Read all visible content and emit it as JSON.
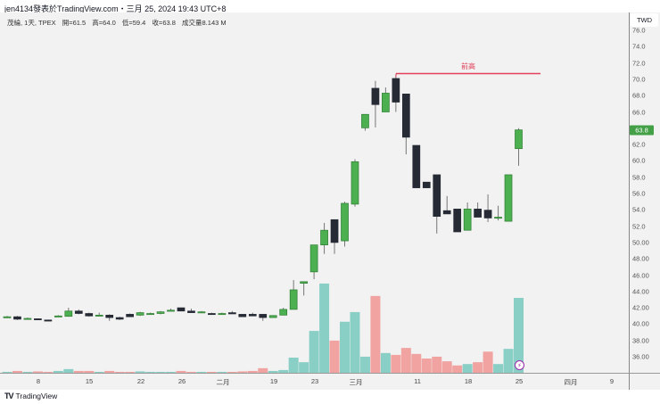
{
  "caption": "jen4134發表於TradingView.com・三月 25, 2024 19:43 UTC+8",
  "legend": {
    "symbol": "茂綸, 1天, TPEX",
    "open": "開=61.5",
    "high": "高=64.0",
    "low": "低=59.4",
    "close": "收=63.8",
    "volume": "成交量8.143 M"
  },
  "currency": "TWD",
  "last_price": "63.8",
  "price_ticks": [
    "76.0",
    "74.0",
    "72.0",
    "70.0",
    "68.0",
    "66.0",
    "62.0",
    "60.0",
    "58.0",
    "56.0",
    "54.0",
    "52.0",
    "50.00",
    "48.00",
    "46.00",
    "44.00",
    "42.00",
    "40.00",
    "38.00",
    "36.00"
  ],
  "time_labels": [
    "8",
    "15",
    "22",
    "26",
    "二月",
    "19",
    "23",
    "三月",
    "11",
    "18",
    "25",
    "四月",
    "9"
  ],
  "annotation": {
    "label": "前高",
    "price": 70.7,
    "color": "#e0405a"
  },
  "footer": {
    "logo_text": "TradingView"
  },
  "colors": {
    "up": "#4caf50",
    "up_border": "#2e7d32",
    "down": "#262a35",
    "vol_up": "#89cfc6",
    "vol_down": "#f0a3a0",
    "last_price": "#43a047"
  },
  "chart_data": {
    "type": "candlestick",
    "ylim": [
      35,
      77
    ],
    "volume_unit": "M",
    "columns": [
      "date",
      "open",
      "high",
      "low",
      "close",
      "volume"
    ],
    "candles": [
      [
        "2024-01-03",
        40.9,
        41.0,
        40.8,
        40.9,
        0.1
      ],
      [
        "2024-01-04",
        40.9,
        41.0,
        40.5,
        40.6,
        0.2
      ],
      [
        "2024-01-05",
        40.7,
        40.8,
        40.6,
        40.7,
        0.1
      ],
      [
        "2024-01-08",
        40.65,
        40.7,
        40.5,
        40.55,
        0.15
      ],
      [
        "2024-01-09",
        40.5,
        40.55,
        40.35,
        40.4,
        0.1
      ],
      [
        "2024-01-10",
        41.0,
        41.1,
        40.9,
        41.0,
        0.2
      ],
      [
        "2024-01-11",
        40.95,
        42.0,
        40.9,
        41.6,
        0.4
      ],
      [
        "2024-01-12",
        41.6,
        41.8,
        41.2,
        41.3,
        0.2
      ],
      [
        "2024-01-15",
        41.3,
        41.4,
        40.9,
        41.0,
        0.2
      ],
      [
        "2024-01-16",
        41.1,
        41.4,
        41.0,
        41.1,
        0.1
      ],
      [
        "2024-01-17",
        41.1,
        41.2,
        40.4,
        40.8,
        0.2
      ],
      [
        "2024-01-18",
        40.8,
        40.9,
        40.5,
        40.6,
        0.1
      ],
      [
        "2024-01-19",
        41.2,
        41.3,
        40.9,
        40.9,
        0.1
      ],
      [
        "2024-01-22",
        41.1,
        41.5,
        41.0,
        41.4,
        0.15
      ],
      [
        "2024-01-23",
        41.3,
        41.4,
        41.2,
        41.3,
        0.1
      ],
      [
        "2024-01-24",
        41.3,
        41.6,
        41.2,
        41.5,
        0.1
      ],
      [
        "2024-01-25",
        41.7,
        41.9,
        41.6,
        41.7,
        0.1
      ],
      [
        "2024-01-26",
        42.0,
        42.0,
        41.6,
        41.6,
        0.2
      ],
      [
        "2024-01-29",
        41.6,
        41.9,
        41.4,
        41.4,
        0.1
      ],
      [
        "2024-01-30",
        41.5,
        41.6,
        41.4,
        41.5,
        0.1
      ],
      [
        "2024-01-31",
        41.3,
        41.4,
        41.2,
        41.2,
        0.1
      ],
      [
        "2024-02-01",
        41.3,
        41.4,
        41.2,
        41.3,
        0.1
      ],
      [
        "2024-02-02",
        41.4,
        41.6,
        41.25,
        41.25,
        0.1
      ],
      [
        "2024-02-05",
        41.2,
        41.2,
        40.9,
        40.9,
        0.15
      ],
      [
        "2024-02-15",
        41.2,
        41.4,
        41.0,
        41.0,
        0.2
      ],
      [
        "2024-02-16",
        41.2,
        41.2,
        40.4,
        40.8,
        0.5
      ],
      [
        "2024-02-19",
        40.8,
        41.1,
        40.8,
        41.05,
        0.2
      ],
      [
        "2024-02-20",
        41.1,
        42.0,
        41.1,
        41.8,
        0.3
      ],
      [
        "2024-02-21",
        41.8,
        45.4,
        41.8,
        44.2,
        1.65
      ],
      [
        "2024-02-22",
        45.0,
        45.2,
        43.5,
        45.2,
        1.15
      ],
      [
        "2024-02-23",
        46.4,
        49.7,
        45.5,
        49.7,
        4.55
      ],
      [
        "2024-02-26",
        49.7,
        52.4,
        48.6,
        51.5,
        9.7
      ],
      [
        "2024-02-27",
        52.8,
        52.8,
        48.6,
        50.0,
        3.5
      ],
      [
        "2024-02-29",
        50.2,
        55.0,
        49.5,
        54.8,
        5.55
      ],
      [
        "2024-03-01",
        54.7,
        60.2,
        54.4,
        59.9,
        6.6
      ],
      [
        "2024-03-04",
        64.05,
        65.7,
        63.7,
        65.7,
        1.75
      ],
      [
        "2024-03-05",
        68.9,
        69.8,
        64.1,
        66.9,
        8.35
      ],
      [
        "2024-03-06",
        66.0,
        69.0,
        66.0,
        68.3,
        2.15
      ],
      [
        "2024-03-07",
        70.1,
        70.6,
        66.0,
        67.2,
        1.95
      ],
      [
        "2024-03-08",
        68.2,
        68.2,
        60.8,
        62.9,
        2.7
      ],
      [
        "2024-03-11",
        61.9,
        61.9,
        56.7,
        56.7,
        2.05
      ],
      [
        "2024-03-12",
        57.4,
        57.4,
        56.7,
        56.7,
        1.55
      ],
      [
        "2024-03-13",
        58.3,
        58.3,
        51.1,
        53.2,
        1.75
      ],
      [
        "2024-03-14",
        53.9,
        55.7,
        53.5,
        53.5,
        1.25
      ],
      [
        "2024-03-15",
        54.1,
        54.1,
        51.3,
        51.3,
        0.8
      ],
      [
        "2024-03-18",
        51.5,
        54.9,
        51.5,
        54.1,
        0.95
      ],
      [
        "2024-03-19",
        54.1,
        54.9,
        53.1,
        53.1,
        1.15
      ],
      [
        "2024-03-20",
        53.96,
        55.9,
        52.5,
        53.0,
        2.3
      ],
      [
        "2024-03-21",
        53.1,
        54.5,
        52.7,
        53.1,
        0.95
      ],
      [
        "2024-03-22",
        52.6,
        58.3,
        52.6,
        58.3,
        2.6
      ],
      [
        "2024-03-25",
        61.5,
        64.0,
        59.4,
        63.8,
        8.143
      ]
    ]
  }
}
